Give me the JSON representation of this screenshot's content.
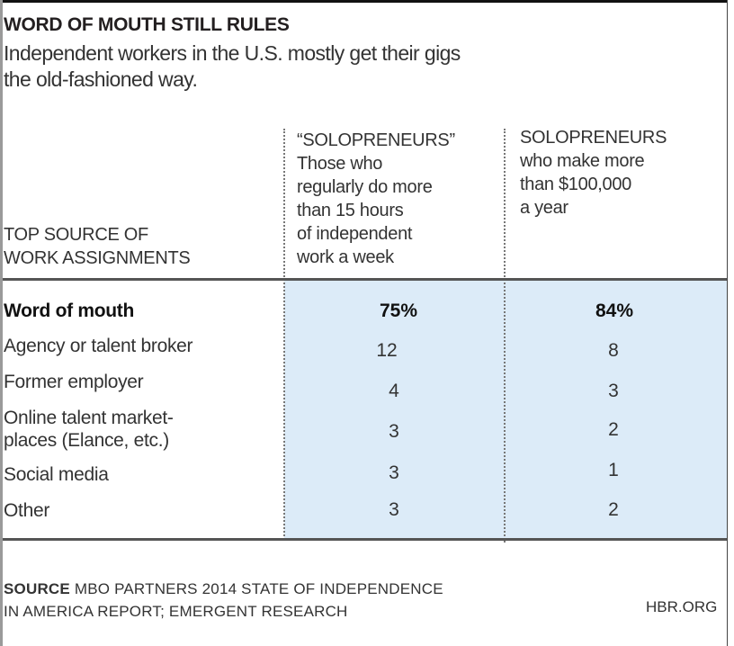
{
  "chart_data": {
    "type": "table",
    "title": "WORD OF MOUTH STILL RULES",
    "subtitle_lines": [
      "Independent workers in the U.S. mostly get their gigs",
      "the old-fashioned way."
    ],
    "row_header_lines": [
      "TOP SOURCE OF",
      "WORK ASSIGNMENTS"
    ],
    "columns": [
      {
        "lines": [
          "“SOLOPRENEURS”",
          "Those who",
          "regularly do more",
          "than 15 hours",
          "of independent",
          "work a week"
        ]
      },
      {
        "lines": [
          "SOLOPRENEURS",
          "who make more",
          "than $100,000",
          "a year"
        ]
      }
    ],
    "rows": [
      {
        "label_lines": [
          "Word of mouth"
        ],
        "values": [
          "75%",
          "84%"
        ],
        "numeric": [
          75,
          84
        ]
      },
      {
        "label_lines": [
          "Agency or talent broker"
        ],
        "values": [
          "12",
          "8"
        ],
        "numeric": [
          12,
          8
        ]
      },
      {
        "label_lines": [
          "Former employer"
        ],
        "values": [
          "4",
          "3"
        ],
        "numeric": [
          4,
          3
        ]
      },
      {
        "label_lines": [
          "Online talent market-",
          "places (Elance, etc.)"
        ],
        "values": [
          "3",
          "2"
        ],
        "numeric": [
          3,
          2
        ]
      },
      {
        "label_lines": [
          "Social media"
        ],
        "values": [
          "3",
          "1"
        ],
        "numeric": [
          3,
          1
        ]
      },
      {
        "label_lines": [
          "Other"
        ],
        "values": [
          "3",
          "2"
        ],
        "numeric": [
          3,
          2
        ]
      }
    ],
    "source_label": "SOURCE",
    "source_lines": [
      "MBO PARTNERS 2014 STATE OF INDEPENDENCE",
      "IN AMERICA REPORT; EMERGENT RESEARCH"
    ],
    "credit": "HBR.ORG",
    "highlight_color": "#dcebf8"
  }
}
